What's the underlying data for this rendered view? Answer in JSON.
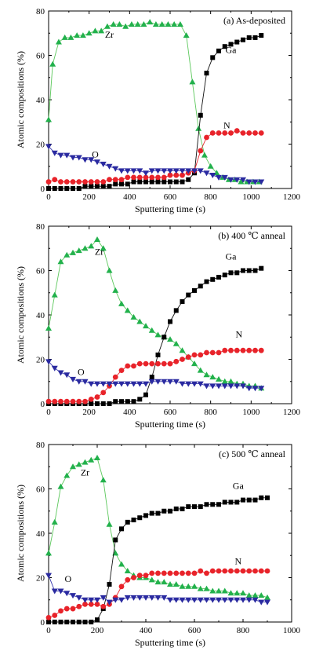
{
  "colors": {
    "Zr": "#22b14c",
    "Ga": "#000000",
    "N": "#e8232a",
    "O": "#2a2aa0",
    "Zr_line": "#5cc85c",
    "Ga_line": "#111111",
    "N_line": "#e8232a",
    "O_line": "#3a3ab0"
  },
  "chart_data": [
    {
      "type": "scatter",
      "title": "(a) As-deposited",
      "xlabel": "Sputtering time (s)",
      "ylabel": "Atomic compositions (%)",
      "xlim": [
        0,
        1200
      ],
      "ylim": [
        0,
        80
      ],
      "xticks": [
        "0",
        "200",
        "400",
        "600",
        "800",
        "1000",
        "1200"
      ],
      "yticks": [
        "0",
        "20",
        "40",
        "60",
        "80"
      ],
      "grid": false,
      "series": [
        {
          "name": "Zr",
          "marker": "triangle-up",
          "x": [
            0,
            20,
            50,
            80,
            110,
            140,
            170,
            200,
            230,
            260,
            290,
            320,
            350,
            380,
            410,
            440,
            470,
            500,
            530,
            560,
            590,
            620,
            650,
            680,
            710,
            740,
            770,
            800,
            830,
            860,
            890,
            920,
            950,
            980,
            1010,
            1040
          ],
          "y": [
            31,
            56,
            66,
            68,
            68,
            69,
            69,
            70,
            71,
            71,
            73,
            74,
            74,
            73,
            74,
            74,
            74,
            75,
            74,
            74,
            74,
            74,
            74,
            69,
            48,
            27,
            15,
            10,
            7,
            5,
            4,
            4,
            3,
            3,
            3,
            3
          ]
        },
        {
          "name": "Ga",
          "marker": "square",
          "x": [
            0,
            30,
            60,
            90,
            120,
            150,
            180,
            210,
            240,
            270,
            300,
            330,
            360,
            390,
            420,
            450,
            480,
            510,
            540,
            570,
            600,
            630,
            660,
            690,
            720,
            750,
            780,
            810,
            840,
            870,
            900,
            930,
            960,
            990,
            1020,
            1050
          ],
          "y": [
            0,
            0,
            0,
            0,
            0,
            0,
            1,
            1,
            1,
            1,
            1,
            2,
            2,
            2,
            3,
            3,
            3,
            3,
            3,
            3,
            3,
            3,
            3,
            4,
            7,
            33,
            52,
            59,
            62,
            64,
            65,
            66,
            67,
            68,
            68,
            69
          ]
        },
        {
          "name": "N",
          "marker": "circle",
          "x": [
            0,
            30,
            60,
            90,
            120,
            150,
            180,
            210,
            240,
            270,
            300,
            330,
            360,
            390,
            420,
            450,
            480,
            510,
            540,
            570,
            600,
            630,
            660,
            690,
            720,
            750,
            780,
            810,
            840,
            870,
            900,
            930,
            960,
            990,
            1020,
            1050
          ],
          "y": [
            3,
            4,
            3,
            3,
            3,
            3,
            3,
            3,
            3,
            3,
            4,
            4,
            4,
            5,
            5,
            5,
            5,
            5,
            5,
            5,
            6,
            6,
            6,
            7,
            8,
            17,
            23,
            25,
            25,
            25,
            25,
            26,
            25,
            25,
            25,
            25
          ]
        },
        {
          "name": "O",
          "marker": "triangle-down",
          "x": [
            0,
            30,
            60,
            90,
            120,
            150,
            180,
            210,
            240,
            270,
            300,
            330,
            360,
            390,
            420,
            450,
            480,
            510,
            540,
            570,
            600,
            630,
            660,
            690,
            720,
            750,
            780,
            810,
            840,
            870,
            900,
            930,
            960,
            990,
            1020,
            1050
          ],
          "y": [
            19,
            16,
            15,
            15,
            14,
            14,
            13,
            13,
            12,
            11,
            10,
            9,
            8,
            8,
            8,
            8,
            7,
            8,
            8,
            8,
            8,
            8,
            8,
            8,
            8,
            8,
            7,
            6,
            5,
            5,
            4,
            4,
            4,
            3,
            3,
            3
          ]
        }
      ],
      "annotations": [
        {
          "text": "Zr",
          "x": 300,
          "y": 68
        },
        {
          "text": "Ga",
          "x": 900,
          "y": 61
        },
        {
          "text": "N",
          "x": 880,
          "y": 27
        },
        {
          "text": "O",
          "x": 230,
          "y": 14
        }
      ]
    },
    {
      "type": "scatter",
      "title": "(b) 400 ℃ anneal",
      "xlabel": "Sputtering time (s)",
      "ylabel": "Atomic compositions (%)",
      "xlim": [
        0,
        1200
      ],
      "ylim": [
        0,
        80
      ],
      "xticks": [
        "0",
        "200",
        "400",
        "600",
        "800",
        "1000",
        "1200"
      ],
      "yticks": [
        "0",
        "20",
        "40",
        "60",
        "80"
      ],
      "grid": false,
      "series": [
        {
          "name": "Zr",
          "marker": "triangle-up",
          "x": [
            0,
            30,
            60,
            90,
            120,
            150,
            180,
            210,
            240,
            270,
            300,
            330,
            360,
            390,
            420,
            450,
            480,
            510,
            540,
            570,
            600,
            630,
            660,
            690,
            720,
            750,
            780,
            810,
            840,
            870,
            900,
            930,
            960,
            990,
            1020,
            1050
          ],
          "y": [
            34,
            49,
            64,
            67,
            68,
            69,
            70,
            71,
            74,
            70,
            60,
            51,
            45,
            42,
            39,
            37,
            35,
            33,
            31,
            30,
            29,
            27,
            24,
            21,
            18,
            15,
            13,
            12,
            11,
            10,
            10,
            9,
            9,
            8,
            8,
            7
          ]
        },
        {
          "name": "Ga",
          "marker": "square",
          "x": [
            0,
            30,
            60,
            90,
            120,
            150,
            180,
            210,
            240,
            270,
            300,
            330,
            360,
            390,
            420,
            450,
            480,
            510,
            540,
            570,
            600,
            630,
            660,
            690,
            720,
            750,
            780,
            810,
            840,
            870,
            900,
            930,
            960,
            990,
            1020,
            1050
          ],
          "y": [
            0,
            0,
            0,
            0,
            0,
            0,
            0,
            0,
            0,
            0,
            0,
            1,
            1,
            1,
            1,
            2,
            4,
            12,
            22,
            30,
            37,
            42,
            46,
            49,
            51,
            53,
            55,
            56,
            57,
            58,
            59,
            59,
            60,
            60,
            60,
            61
          ]
        },
        {
          "name": "N",
          "marker": "circle",
          "x": [
            0,
            30,
            60,
            90,
            120,
            150,
            180,
            210,
            240,
            270,
            300,
            330,
            360,
            390,
            420,
            450,
            480,
            510,
            540,
            570,
            600,
            630,
            660,
            690,
            720,
            750,
            780,
            810,
            840,
            870,
            900,
            930,
            960,
            990,
            1020,
            1050
          ],
          "y": [
            1,
            1,
            1,
            1,
            1,
            1,
            1,
            2,
            3,
            5,
            8,
            12,
            15,
            17,
            17,
            18,
            18,
            18,
            18,
            18,
            18,
            19,
            20,
            21,
            22,
            22,
            23,
            23,
            23,
            24,
            24,
            24,
            24,
            24,
            24,
            24
          ]
        },
        {
          "name": "O",
          "marker": "triangle-down",
          "x": [
            0,
            30,
            60,
            90,
            120,
            150,
            180,
            210,
            240,
            270,
            300,
            330,
            360,
            390,
            420,
            450,
            480,
            510,
            540,
            570,
            600,
            630,
            660,
            690,
            720,
            750,
            780,
            810,
            840,
            870,
            900,
            930,
            960,
            990,
            1020,
            1050
          ],
          "y": [
            19,
            16,
            14,
            13,
            11,
            10,
            10,
            9,
            9,
            9,
            9,
            9,
            9,
            9,
            9,
            9,
            9,
            10,
            10,
            10,
            10,
            10,
            9,
            9,
            9,
            9,
            8,
            8,
            8,
            8,
            8,
            8,
            8,
            7,
            7,
            7
          ]
        }
      ],
      "annotations": [
        {
          "text": "Zr",
          "x": 250,
          "y": 67
        },
        {
          "text": "Ga",
          "x": 900,
          "y": 65
        },
        {
          "text": "N",
          "x": 940,
          "y": 30
        },
        {
          "text": "O",
          "x": 160,
          "y": 13
        }
      ]
    },
    {
      "type": "scatter",
      "title": "(c) 500 ℃ anneal",
      "xlabel": "Sputtering time (s)",
      "ylabel": "Atomic compositions (%)",
      "xlim": [
        0,
        1000
      ],
      "ylim": [
        0,
        80
      ],
      "xticks": [
        "0",
        "200",
        "400",
        "600",
        "800",
        "1000"
      ],
      "yticks": [
        "0",
        "20",
        "40",
        "60",
        "80"
      ],
      "grid": false,
      "series": [
        {
          "name": "Zr",
          "marker": "triangle-up",
          "x": [
            0,
            25,
            50,
            75,
            100,
            125,
            150,
            175,
            200,
            225,
            250,
            275,
            300,
            325,
            350,
            375,
            400,
            425,
            450,
            475,
            500,
            525,
            550,
            575,
            600,
            625,
            650,
            675,
            700,
            725,
            750,
            775,
            800,
            825,
            850,
            875,
            900
          ],
          "y": [
            31,
            45,
            61,
            66,
            70,
            71,
            72,
            73,
            74,
            64,
            44,
            31,
            26,
            23,
            21,
            20,
            20,
            19,
            18,
            18,
            17,
            17,
            16,
            16,
            16,
            15,
            15,
            14,
            14,
            14,
            13,
            13,
            13,
            12,
            12,
            12,
            11
          ]
        },
        {
          "name": "Ga",
          "marker": "square",
          "x": [
            0,
            25,
            50,
            75,
            100,
            125,
            150,
            175,
            200,
            225,
            250,
            275,
            300,
            325,
            350,
            375,
            400,
            425,
            450,
            475,
            500,
            525,
            550,
            575,
            600,
            625,
            650,
            675,
            700,
            725,
            750,
            775,
            800,
            825,
            850,
            875,
            900
          ],
          "y": [
            0,
            0,
            0,
            0,
            0,
            0,
            0,
            0,
            1,
            6,
            17,
            37,
            42,
            45,
            46,
            47,
            48,
            49,
            49,
            50,
            50,
            51,
            51,
            52,
            52,
            52,
            53,
            53,
            53,
            54,
            54,
            54,
            55,
            55,
            55,
            56,
            56
          ]
        },
        {
          "name": "N",
          "marker": "circle",
          "x": [
            0,
            25,
            50,
            75,
            100,
            125,
            150,
            175,
            200,
            225,
            250,
            275,
            300,
            325,
            350,
            375,
            400,
            425,
            450,
            475,
            500,
            525,
            550,
            575,
            600,
            625,
            650,
            675,
            700,
            725,
            750,
            775,
            800,
            825,
            850,
            875,
            900
          ],
          "y": [
            2,
            3,
            5,
            6,
            6,
            7,
            8,
            8,
            8,
            7,
            8,
            11,
            16,
            19,
            20,
            21,
            21,
            22,
            22,
            22,
            22,
            22,
            22,
            22,
            22,
            23,
            22,
            23,
            23,
            23,
            23,
            23,
            23,
            23,
            23,
            23,
            23
          ]
        },
        {
          "name": "O",
          "marker": "triangle-down",
          "x": [
            0,
            25,
            50,
            75,
            100,
            125,
            150,
            175,
            200,
            225,
            250,
            275,
            300,
            325,
            350,
            375,
            400,
            425,
            450,
            475,
            500,
            525,
            550,
            575,
            600,
            625,
            650,
            675,
            700,
            725,
            750,
            775,
            800,
            825,
            850,
            875,
            900
          ],
          "y": [
            21,
            14,
            14,
            13,
            12,
            11,
            10,
            10,
            10,
            11,
            9,
            10,
            10,
            11,
            11,
            11,
            11,
            11,
            11,
            11,
            10,
            10,
            10,
            10,
            10,
            10,
            10,
            10,
            10,
            10,
            10,
            10,
            10,
            10,
            10,
            9,
            9
          ]
        }
      ],
      "annotations": [
        {
          "text": "Zr",
          "x": 150,
          "y": 66
        },
        {
          "text": "Ga",
          "x": 780,
          "y": 60
        },
        {
          "text": "N",
          "x": 780,
          "y": 26
        },
        {
          "text": "O",
          "x": 80,
          "y": 18
        }
      ]
    }
  ]
}
